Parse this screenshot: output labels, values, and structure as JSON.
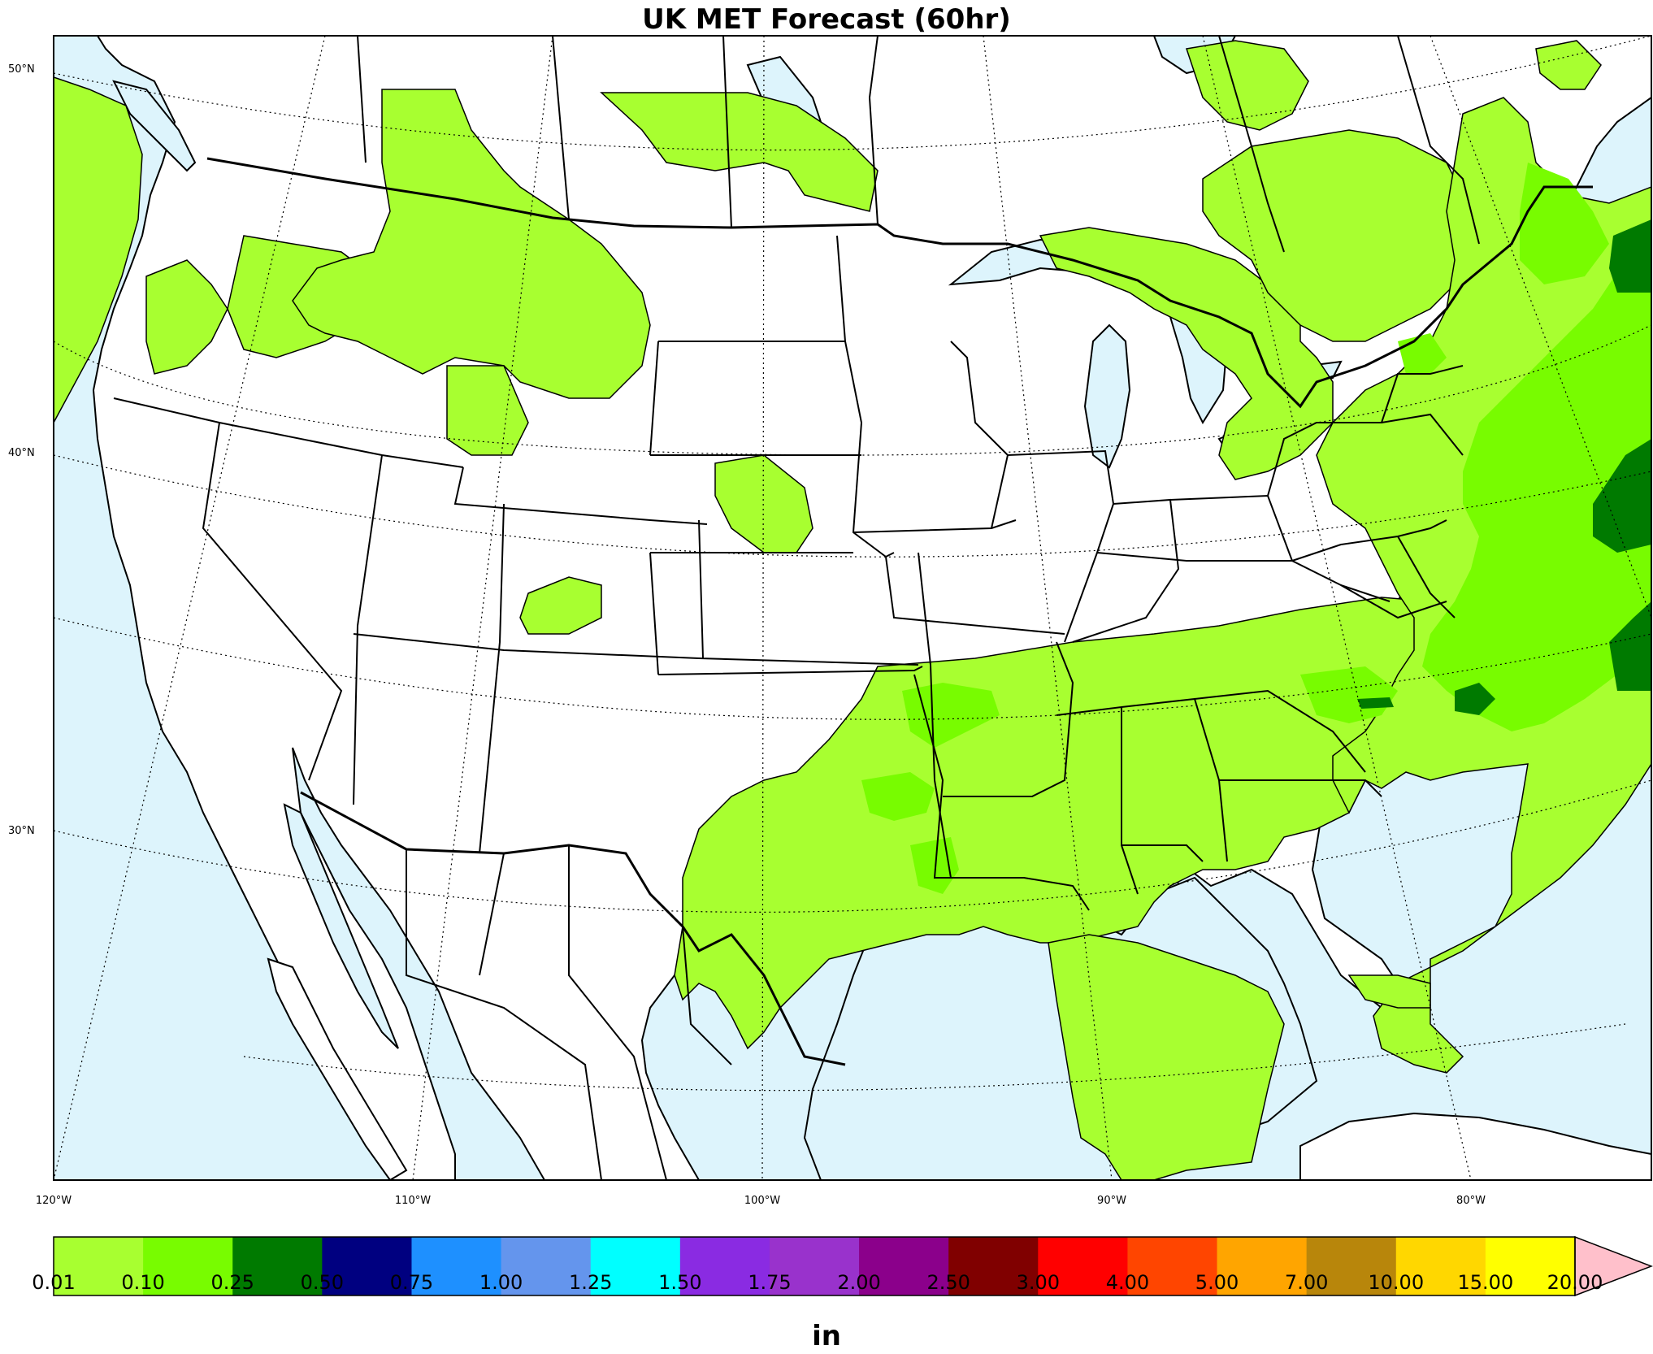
{
  "title": "UK MET Forecast (60hr)",
  "latitude_labels": [
    "50°N",
    "40°N",
    "30°N"
  ],
  "longitude_labels": [
    "120°W",
    "110°W",
    "100°W",
    "90°W",
    "80°W"
  ],
  "colors": {
    "land": "#ffffff",
    "water": "#ddf4fc",
    "precip_0_01": "#a8ff30",
    "precip_0_10": "#78fc00",
    "precip_0_25": "#008000",
    "extend_arrow": "#ffc0cb"
  },
  "colorbar": {
    "unit": "in",
    "ticks": [
      "0.01",
      "0.10",
      "0.25",
      "0.50",
      "0.75",
      "1.00",
      "1.25",
      "1.50",
      "1.75",
      "2.00",
      "2.50",
      "3.00",
      "4.00",
      "5.00",
      "7.00",
      "10.00",
      "15.00",
      "20.00"
    ],
    "colors": [
      "#a8ff30",
      "#78fc00",
      "#007a00",
      "#000080",
      "#1e90ff",
      "#6495ed",
      "#00ffff",
      "#8a2be2",
      "#9932cc",
      "#8b008b",
      "#800000",
      "#ff0000",
      "#ff4500",
      "#ffa500",
      "#b8860b",
      "#ffd700",
      "#ffff00"
    ],
    "extend_color": "#ffc0cb"
  }
}
